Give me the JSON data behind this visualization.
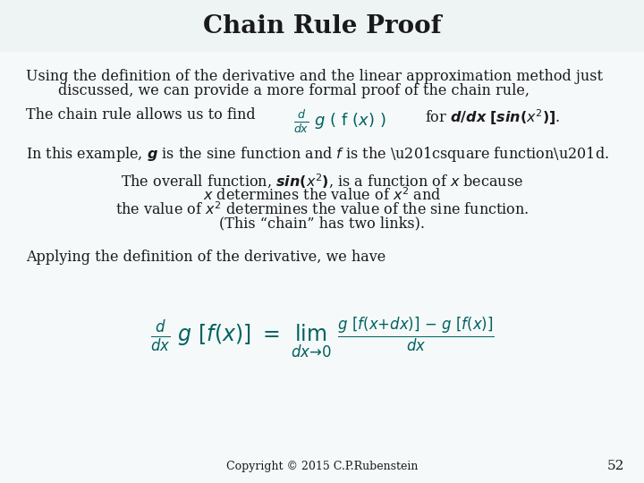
{
  "title": "Chain Rule Proof",
  "title_fontsize": 20,
  "title_bg_color": "#eef4f4",
  "bg_color": "#f5f9f9",
  "text_color": "#1a1a1a",
  "teal_color": "#006060",
  "page_number": "52",
  "copyright": "Copyright © 2015 C.P.Rubenstein",
  "body_fontsize": 13,
  "para1_line1": "Using the definition of the derivative and the linear approximation method just",
  "para1_line2": "discussed, we can provide a more formal proof of the chain rule,",
  "chain_rule_text": "The chain rule allows us to find",
  "example_text1": "In this example,",
  "example_text2": "is the sine function and",
  "example_text3": "is the “square function”.",
  "center1": "The overall function,",
  "center1b": ", is a function of",
  "center1c": "because",
  "center2": "determines the value of",
  "center2b": "and",
  "center3": "the value of",
  "center3b": "determines the value of the sine function.",
  "center4": "(This “chain” has two links).",
  "applying": "Applying the definition of the derivative, we have"
}
